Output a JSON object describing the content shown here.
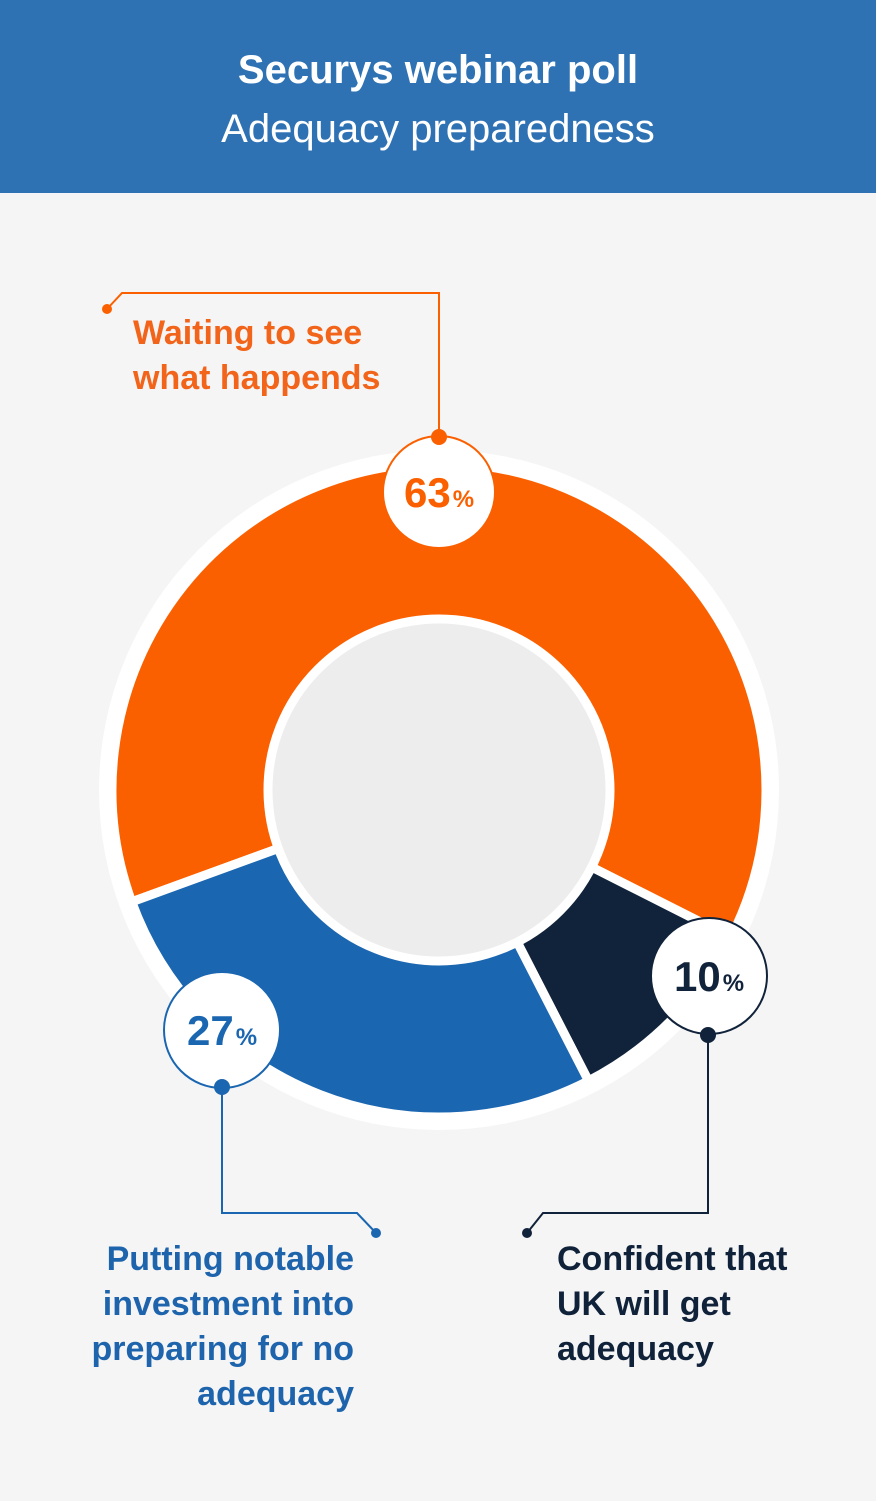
{
  "header": {
    "title": "Securys webinar poll",
    "subtitle": "Adequacy preparedness"
  },
  "colors": {
    "header_bg": "#2e72b4",
    "orange": "#fb6000",
    "blue": "#1b66b0",
    "navy": "#11233b",
    "center": "#ededed"
  },
  "chart_data": {
    "type": "pie",
    "title": "Securys webinar poll",
    "subtitle": "Adequacy preparedness",
    "donut": true,
    "unit": "%",
    "slices": [
      {
        "label": "Waiting to see what happends",
        "value": 63,
        "color": "#fb6000"
      },
      {
        "label": "Confident that UK will get adequacy",
        "value": 10,
        "color": "#11233b"
      },
      {
        "label": "Putting notable investment into preparing for no adequacy",
        "value": 27,
        "color": "#1b66b0"
      }
    ],
    "value_labels": [
      "63",
      "10",
      "27"
    ]
  },
  "labels": {
    "waiting": "Waiting to see\nwhat happends",
    "confident": "Confident that\nUK will get\nadequacy",
    "investment": "Putting notable\ninvestment into\npreparing for no\nadequacy"
  }
}
